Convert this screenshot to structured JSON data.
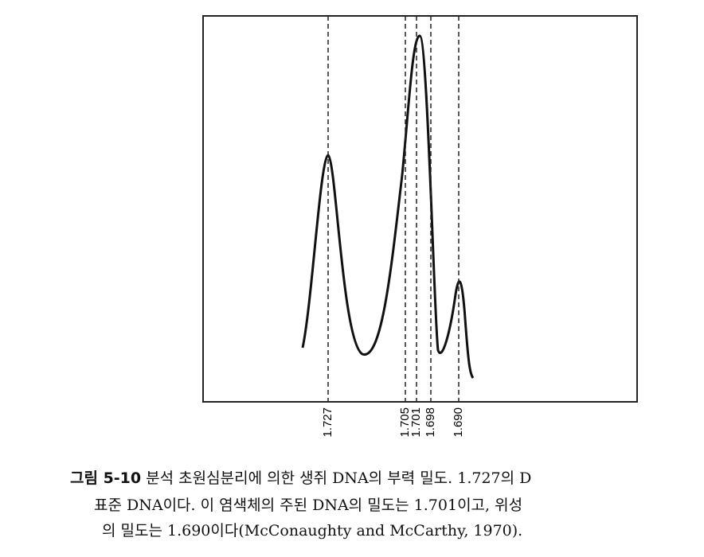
{
  "figure": {
    "markers": [
      "1.727",
      "1.705",
      "1.701",
      "1.698",
      "1.690"
    ]
  },
  "caption": {
    "label": "그림 5-10",
    "lines": [
      "분석 초원심분리에 의한 생쥐 DNA의 부력 밀도. 1.727의 D",
      "표준 DNA이다. 이 염색체의 주된 DNA의 밀도는 1.701이고, 위성",
      "의 밀도는 1.690이다(McConaughty and McCarthy, 1970)."
    ]
  }
}
